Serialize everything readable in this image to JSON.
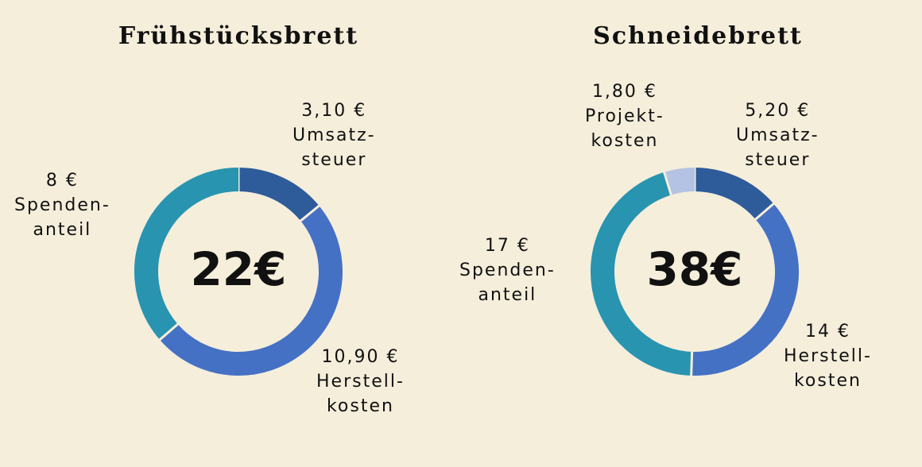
{
  "chart_data": [
    {
      "type": "pie",
      "title": "Frühstücksbrett",
      "total": "22€",
      "series": [
        {
          "name": "Umsatzsteuer",
          "value": 3.1,
          "value_text": "3,10 €",
          "label_lines": [
            "Umsatz-",
            "steuer"
          ],
          "color": "#2e5b9a"
        },
        {
          "name": "Herstellkosten",
          "value": 10.9,
          "value_text": "10,90 €",
          "label_lines": [
            "Herstell-",
            "kosten"
          ],
          "color": "#4571c4"
        },
        {
          "name": "Spendenanteil",
          "value": 8,
          "value_text": "8 €",
          "label_lines": [
            "Spenden-",
            "anteil"
          ],
          "color": "#2894b0"
        }
      ]
    },
    {
      "type": "pie",
      "title": "Schneidebrett",
      "total": "38€",
      "series": [
        {
          "name": "Umsatzsteuer",
          "value": 5.2,
          "value_text": "5,20 €",
          "label_lines": [
            "Umsatz-",
            "steuer"
          ],
          "color": "#2e5b9a"
        },
        {
          "name": "Herstellkosten",
          "value": 14,
          "value_text": "14 €",
          "label_lines": [
            "Herstell-",
            "kosten"
          ],
          "color": "#4571c4"
        },
        {
          "name": "Spendenanteil",
          "value": 17,
          "value_text": "17 €",
          "label_lines": [
            "Spenden-",
            "anteil"
          ],
          "color": "#2894b0"
        },
        {
          "name": "Projektkosten",
          "value": 1.8,
          "value_text": "1,80 €",
          "label_lines": [
            "Projekt-",
            "kosten"
          ],
          "color": "#b4c2e3"
        }
      ]
    }
  ]
}
